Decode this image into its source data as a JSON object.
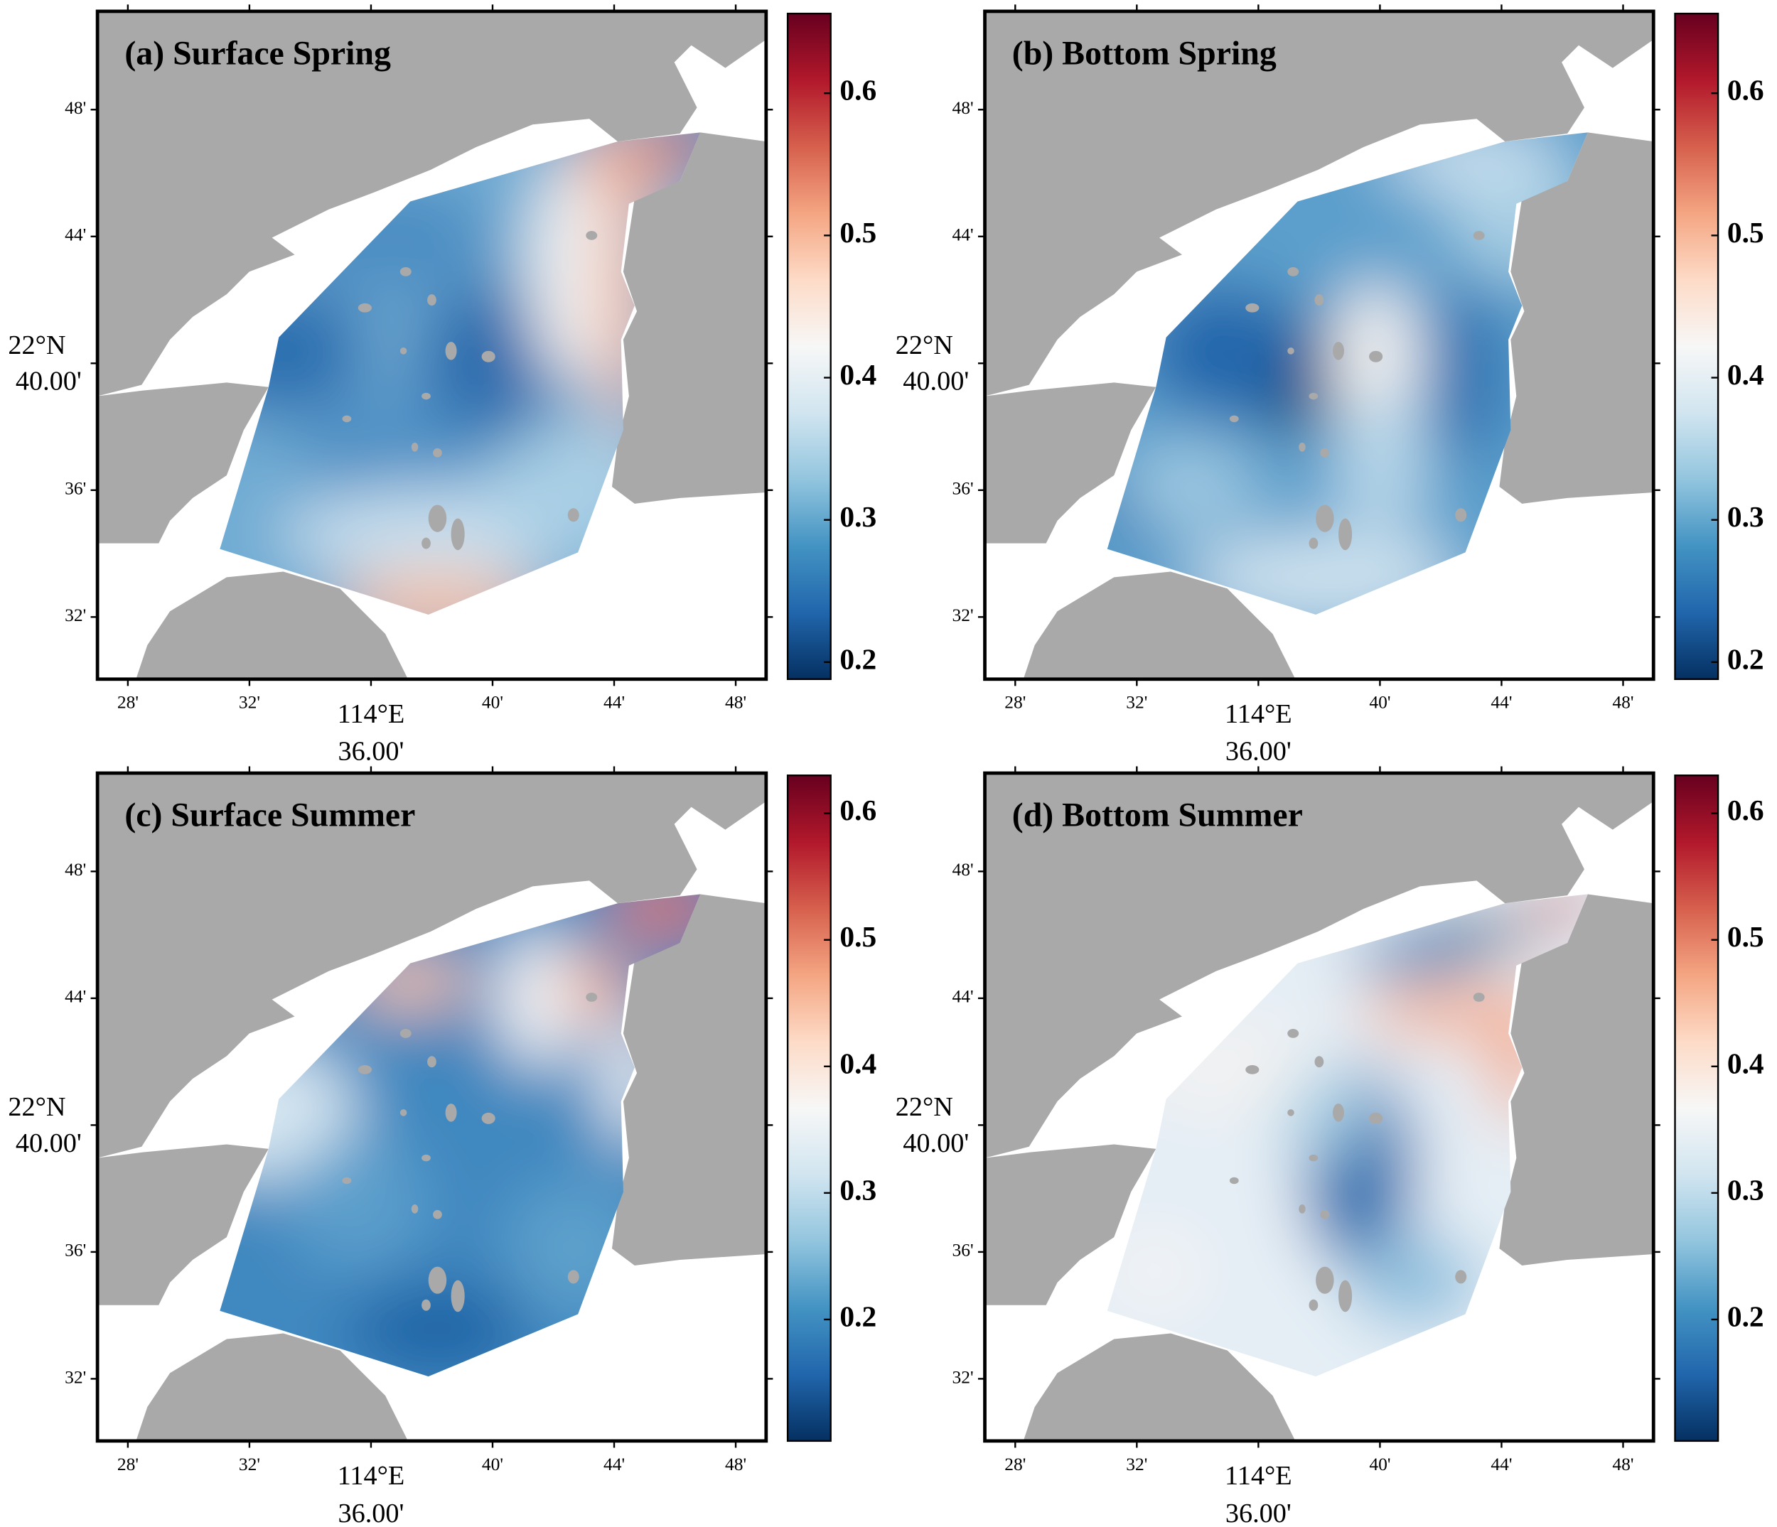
{
  "map": {
    "xlim": [
      27,
      49
    ],
    "ylim": [
      30.04,
      51.1
    ],
    "xticks": [
      {
        "value": 28,
        "label": "28'"
      },
      {
        "value": 32,
        "label": "32'"
      },
      {
        "value": 36,
        "label": [
          "114°E",
          "36.00'"
        ]
      },
      {
        "value": 40,
        "label": "40'"
      },
      {
        "value": 44,
        "label": "44'"
      },
      {
        "value": 48,
        "label": "48'"
      }
    ],
    "yticks": [
      {
        "value": 48,
        "label": "48'"
      },
      {
        "value": 44,
        "label": "44'"
      },
      {
        "value": 40,
        "label": [
          "22°N",
          "40.00'"
        ]
      },
      {
        "value": 36,
        "label": "36'"
      },
      {
        "value": 32,
        "label": "32'"
      }
    ]
  },
  "panels": [
    {
      "title": "(a) Surface Spring",
      "colorbar": {
        "lim": [
          0.188,
          0.656
        ],
        "ticks": [
          0.2,
          0.3,
          0.4,
          0.5,
          0.6
        ]
      }
    },
    {
      "title": "(b) Bottom Spring",
      "colorbar": {
        "lim": [
          0.188,
          0.656
        ],
        "ticks": [
          0.2,
          0.3,
          0.4,
          0.5,
          0.6
        ]
      }
    },
    {
      "title": "(c) Surface Summer",
      "colorbar": {
        "lim": [
          0.104,
          0.63
        ],
        "ticks": [
          0.2,
          0.3,
          0.4,
          0.5,
          0.6
        ]
      }
    },
    {
      "title": "(d) Bottom Summer",
      "colorbar": {
        "lim": [
          0.104,
          0.63
        ],
        "ticks": [
          0.2,
          0.3,
          0.4,
          0.5,
          0.6
        ]
      }
    }
  ]
}
